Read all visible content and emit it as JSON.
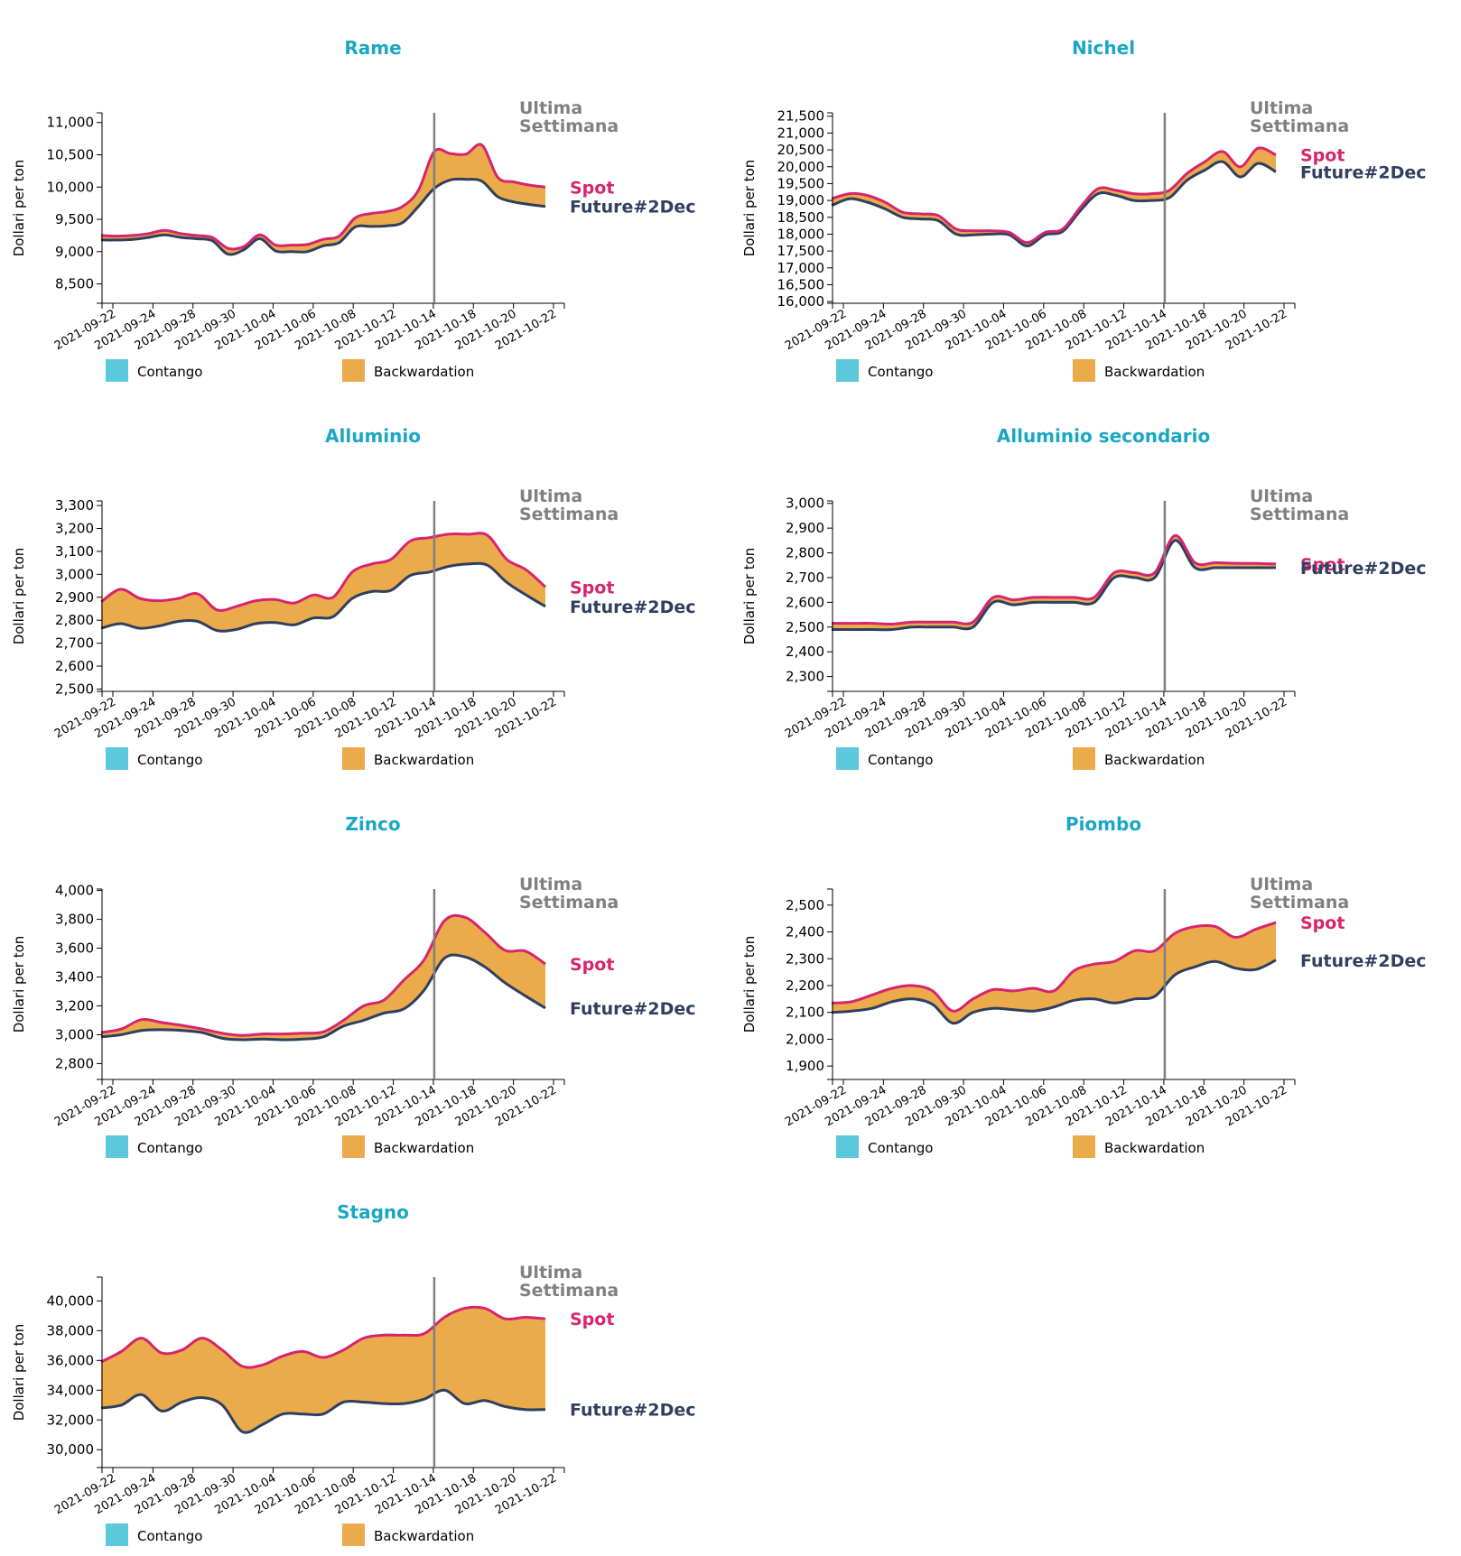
{
  "common": {
    "ylabel": "Dollari per ton",
    "marker_label_1": "Ultima",
    "marker_label_2": "Settimana",
    "spot_label": "Spot",
    "future_label": "Future#2Dec",
    "legend_contango": "Contango",
    "legend_backwardation": "Backwardation",
    "colors": {
      "title": "#1aa7c4",
      "spot": "#d6246e",
      "future": "#2f3f5f",
      "contango": "#5bc8dc",
      "backwardation": "#ecab4a",
      "marker": "#808080"
    }
  },
  "x_ticks": [
    "2021-09-22",
    "2021-09-24",
    "2021-09-28",
    "2021-09-30",
    "2021-10-04",
    "2021-10-06",
    "2021-10-08",
    "2021-10-12",
    "2021-10-14",
    "2021-10-18",
    "2021-10-20",
    "2021-10-22"
  ],
  "marker_at_tick": 8,
  "chart_data": [
    {
      "type": "area",
      "title": "Rame",
      "ylabel": "Dollari per ton",
      "ylim": [
        8200,
        11150
      ],
      "yticks": [
        8500,
        9000,
        9500,
        10000,
        10500,
        11000
      ],
      "series": [
        {
          "name": "Spot",
          "values": [
            9250,
            9240,
            9250,
            9280,
            9330,
            9280,
            9250,
            9220,
            9050,
            9080,
            9260,
            9100,
            9100,
            9110,
            9190,
            9240,
            9520,
            9590,
            9620,
            9700,
            9950,
            10550,
            10520,
            10510,
            10650,
            10150,
            10080,
            10030,
            10000
          ]
        },
        {
          "name": "Future#2Dec",
          "values": [
            9180,
            9180,
            9190,
            9220,
            9260,
            9220,
            9200,
            9170,
            8960,
            9030,
            9200,
            9010,
            9000,
            9000,
            9090,
            9140,
            9380,
            9390,
            9400,
            9450,
            9700,
            9980,
            10110,
            10120,
            10090,
            9850,
            9770,
            9730,
            9700
          ]
        }
      ]
    },
    {
      "type": "area",
      "title": "Nichel",
      "ylabel": "Dollari per ton",
      "ylim": [
        15950,
        21600
      ],
      "yticks": [
        16000,
        16500,
        17000,
        17500,
        18000,
        18500,
        19000,
        19500,
        20000,
        20500,
        21000,
        21500
      ],
      "series": [
        {
          "name": "Spot",
          "values": [
            19050,
            19200,
            19150,
            18950,
            18650,
            18600,
            18550,
            18150,
            18100,
            18100,
            18050,
            17750,
            18050,
            18150,
            18800,
            19350,
            19300,
            19200,
            19200,
            19300,
            19800,
            20150,
            20450,
            20000,
            20550,
            20350
          ]
        },
        {
          "name": "Future#2Dec",
          "values": [
            18850,
            19050,
            18950,
            18750,
            18500,
            18450,
            18400,
            18000,
            17980,
            18000,
            17980,
            17650,
            17980,
            18080,
            18700,
            19200,
            19150,
            19000,
            19000,
            19080,
            19600,
            19900,
            20150,
            19700,
            20100,
            19850
          ]
        }
      ]
    },
    {
      "type": "area",
      "title": "Alluminio",
      "ylabel": "Dollari per ton",
      "ylim": [
        2490,
        3320
      ],
      "yticks": [
        2500,
        2600,
        2700,
        2800,
        2900,
        3000,
        3100,
        3200,
        3300
      ],
      "series": [
        {
          "name": "Spot",
          "values": [
            2880,
            2935,
            2895,
            2885,
            2895,
            2915,
            2845,
            2860,
            2885,
            2890,
            2875,
            2910,
            2900,
            3010,
            3045,
            3065,
            3145,
            3160,
            3175,
            3175,
            3170,
            3065,
            3020,
            2945
          ]
        },
        {
          "name": "Future#2Dec",
          "values": [
            2765,
            2785,
            2765,
            2775,
            2795,
            2795,
            2755,
            2760,
            2785,
            2790,
            2780,
            2810,
            2815,
            2895,
            2925,
            2930,
            2995,
            3010,
            3035,
            3045,
            3040,
            2965,
            2910,
            2860
          ]
        }
      ]
    },
    {
      "type": "area",
      "title": "Alluminio secondario",
      "ylabel": "Dollari per ton",
      "ylim": [
        2240,
        3010
      ],
      "yticks": [
        2300,
        2400,
        2500,
        2600,
        2700,
        2800,
        2900,
        3000
      ],
      "series": [
        {
          "name": "Spot",
          "values": [
            2515,
            2515,
            2515,
            2512,
            2520,
            2520,
            2520,
            2520,
            2620,
            2610,
            2620,
            2620,
            2620,
            2620,
            2720,
            2720,
            2720,
            2870,
            2760,
            2760,
            2758,
            2757,
            2755
          ]
        },
        {
          "name": "Future#2Dec",
          "values": [
            2490,
            2490,
            2490,
            2490,
            2500,
            2500,
            2500,
            2500,
            2600,
            2590,
            2600,
            2600,
            2600,
            2600,
            2700,
            2700,
            2700,
            2850,
            2740,
            2740,
            2740,
            2740,
            2740
          ]
        }
      ]
    },
    {
      "type": "area",
      "title": "Zinco",
      "ylabel": "Dollari per ton",
      "ylim": [
        2690,
        4010
      ],
      "yticks": [
        2800,
        3000,
        3200,
        3400,
        3600,
        3800,
        4000
      ],
      "series": [
        {
          "name": "Spot",
          "values": [
            3015,
            3040,
            3105,
            3085,
            3065,
            3040,
            3010,
            2995,
            3005,
            3005,
            3010,
            3020,
            3100,
            3200,
            3240,
            3380,
            3520,
            3790,
            3815,
            3710,
            3585,
            3580,
            3490
          ]
        },
        {
          "name": "Future#2Dec",
          "values": [
            2985,
            3000,
            3030,
            3035,
            3030,
            3015,
            2975,
            2965,
            2970,
            2965,
            2970,
            2985,
            3060,
            3100,
            3150,
            3180,
            3310,
            3530,
            3540,
            3470,
            3360,
            3270,
            3185
          ]
        }
      ]
    },
    {
      "type": "area",
      "title": "Piombo",
      "ylabel": "Dollari per ton",
      "ylim": [
        1850,
        2560
      ],
      "yticks": [
        1900,
        2000,
        2100,
        2200,
        2300,
        2400,
        2500
      ],
      "series": [
        {
          "name": "Spot",
          "values": [
            2135,
            2140,
            2165,
            2190,
            2200,
            2180,
            2105,
            2150,
            2185,
            2180,
            2190,
            2180,
            2255,
            2280,
            2290,
            2330,
            2330,
            2395,
            2420,
            2420,
            2380,
            2410,
            2435
          ]
        },
        {
          "name": "Future#2Dec",
          "values": [
            2100,
            2105,
            2115,
            2140,
            2150,
            2130,
            2060,
            2100,
            2115,
            2110,
            2105,
            2120,
            2145,
            2150,
            2135,
            2150,
            2160,
            2240,
            2270,
            2290,
            2265,
            2260,
            2295
          ]
        }
      ]
    },
    {
      "type": "area",
      "title": "Stagno",
      "ylabel": "Dollari per ton",
      "ylim": [
        28800,
        41600
      ],
      "yticks": [
        30000,
        32000,
        34000,
        36000,
        38000,
        40000
      ],
      "series": [
        {
          "name": "Spot",
          "values": [
            35900,
            36600,
            37500,
            36500,
            36700,
            37500,
            36700,
            35600,
            35700,
            36300,
            36600,
            36200,
            36700,
            37500,
            37700,
            37700,
            37800,
            38900,
            39500,
            39500,
            38800,
            38900,
            38800
          ]
        },
        {
          "name": "Future#2Dec",
          "values": [
            32800,
            33000,
            33700,
            32600,
            33200,
            33500,
            33000,
            31200,
            31700,
            32400,
            32400,
            32400,
            33200,
            33200,
            33100,
            33100,
            33400,
            34000,
            33100,
            33300,
            32900,
            32700,
            32700
          ]
        }
      ]
    }
  ]
}
